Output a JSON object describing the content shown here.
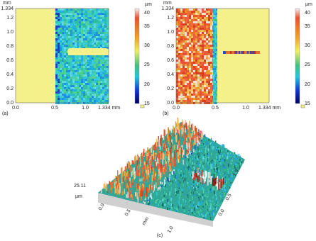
{
  "panels": [
    {
      "label": "(a)",
      "y_axis_unit": "mm",
      "y_ticks": [
        "1.334",
        "1.2",
        "1.0",
        "0.8",
        "0.6",
        "0.4",
        "0.2",
        "0.0"
      ],
      "x_ticks": [
        "0.0",
        "0.5",
        "1.0",
        "1.334 mm"
      ],
      "colorbar_unit": "µm",
      "colorbar_ticks": [
        "40",
        "35",
        "30",
        "25",
        "20",
        "15"
      ]
    },
    {
      "label": "(b)",
      "y_axis_unit": "mm",
      "y_ticks": [
        "1.334",
        "1.2",
        "1.0",
        "0.8",
        "0.6",
        "0.4",
        "0.2",
        "0.0"
      ],
      "x_ticks": [
        "0.0",
        "0.5",
        "1.0",
        "1.334 mm"
      ],
      "colorbar_unit": "µm",
      "colorbar_ticks": [
        "40",
        "35",
        "30",
        "25",
        "20",
        "15"
      ]
    }
  ],
  "panel_c": {
    "label": "(c)",
    "z_max": "25.11",
    "z_unit": "µm",
    "x_ticks": [
      "0.0",
      "0.5",
      "1.0"
    ],
    "x_unit": "mm",
    "y_ticks": [
      "0.0",
      "0.5",
      "1.0"
    ]
  }
}
